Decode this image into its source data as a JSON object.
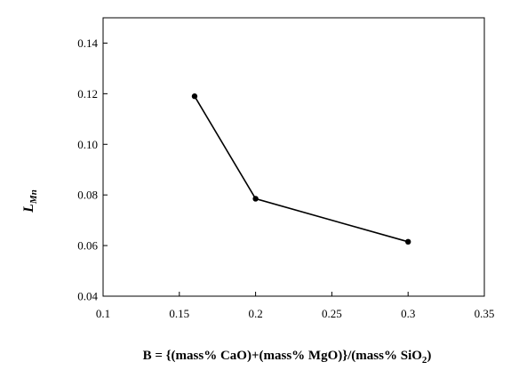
{
  "chart_data": {
    "type": "line",
    "x": [
      0.16,
      0.2,
      0.3
    ],
    "y": [
      0.119,
      0.0785,
      0.0615
    ],
    "xlim": [
      0.1,
      0.35
    ],
    "ylim": [
      0.04,
      0.15
    ],
    "xticks": [
      0.1,
      0.15,
      0.2,
      0.25,
      0.3,
      0.35
    ],
    "yticks": [
      0.04,
      0.06,
      0.08,
      0.1,
      0.12,
      0.14
    ],
    "xtick_labels": [
      "0.1",
      "0.15",
      "0.2",
      "0.25",
      "0.3",
      "0.35"
    ],
    "ytick_labels": [
      "0.04",
      "0.06",
      "0.08",
      "0.10",
      "0.12",
      "0.14"
    ],
    "xlabel": "B = {(mass% CaO)+(mass% MgO)}/(mass% SiO",
    "xlabel_sub": "2",
    "xlabel_end": ")",
    "ylabel": "L",
    "ylabel_sub": "Mn",
    "grid": false,
    "line_color": "#000000",
    "marker": "circle"
  }
}
